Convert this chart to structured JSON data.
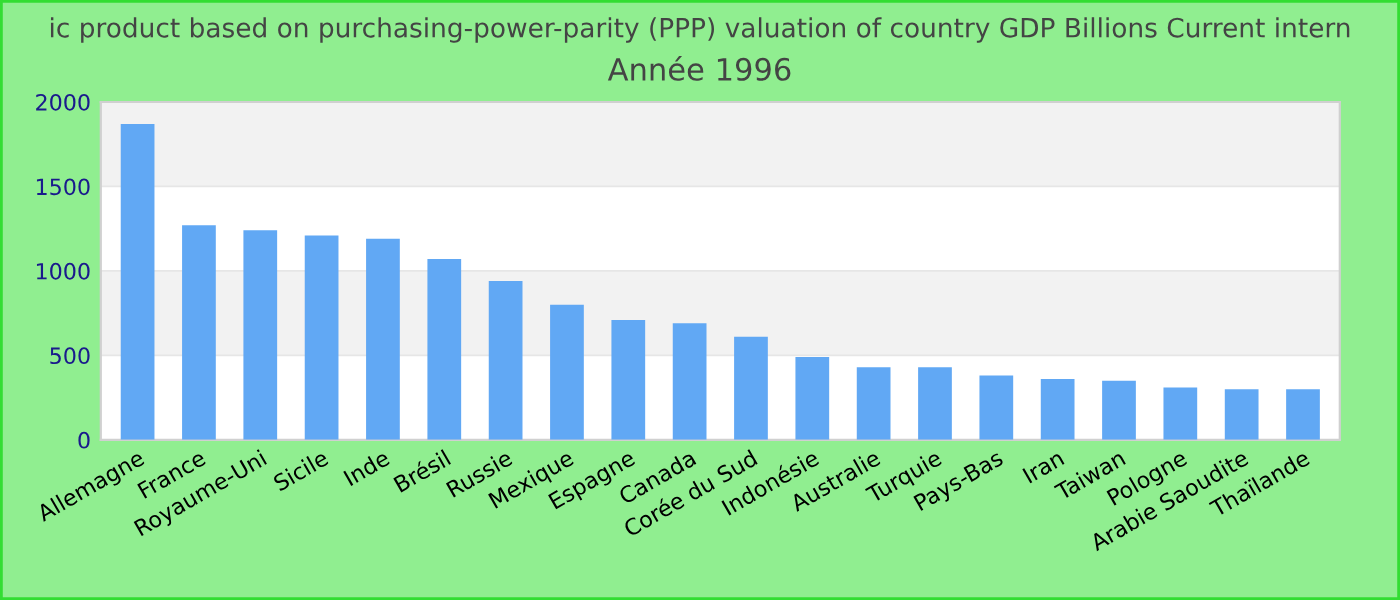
{
  "chart_data": {
    "type": "bar",
    "title": "ic product based on purchasing-power-parity (PPP) valuation of country GDP Billions Current intern",
    "subtitle": "Année 1996",
    "categories": [
      "Allemagne",
      "France",
      "Royaume-Uni",
      "Sicile",
      "Inde",
      "Brésil",
      "Russie",
      "Mexique",
      "Espagne",
      "Canada",
      "Corée du Sud",
      "Indonésie",
      "Australie",
      "Turquie",
      "Pays-Bas",
      "Iran",
      "Taiwan",
      "Pologne",
      "Arabie Saoudite",
      "Thaïlande"
    ],
    "values": [
      1870,
      1270,
      1240,
      1210,
      1190,
      1070,
      940,
      800,
      710,
      690,
      610,
      490,
      430,
      430,
      380,
      360,
      350,
      310,
      300,
      300
    ],
    "color": "#61a8f4",
    "ylim": [
      0,
      2000
    ],
    "yticks": [
      0,
      500,
      1000,
      1500,
      2000
    ],
    "grid": "y",
    "legend": false
  }
}
